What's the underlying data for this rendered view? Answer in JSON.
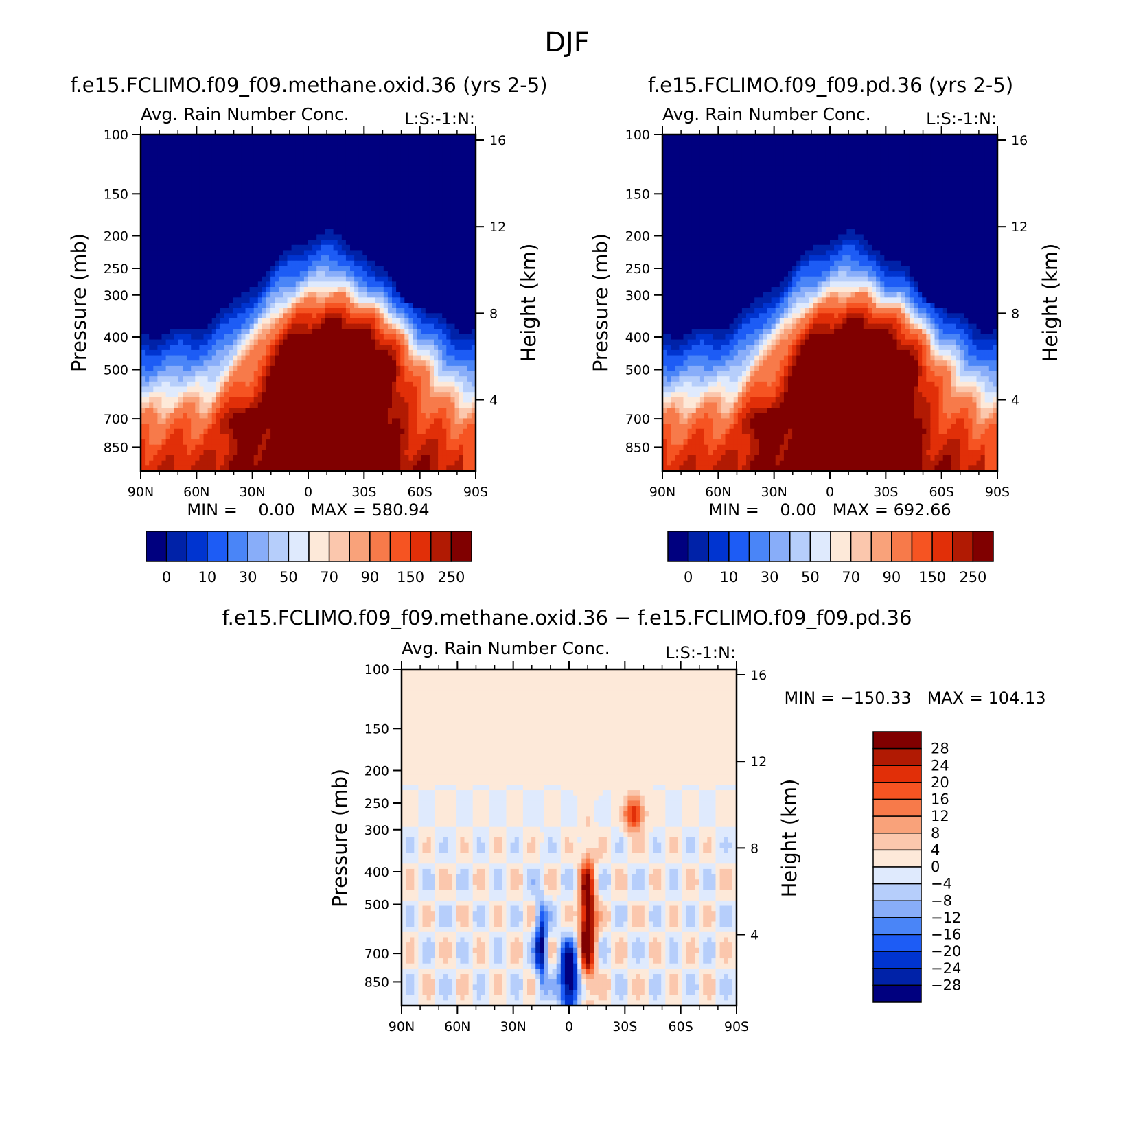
{
  "figure_title": "DJF",
  "chart_data": [
    {
      "type": "heatmap",
      "title": "f.e15.FCLIMO.f09_f09.methane.oxid.36 (yrs 2-5)",
      "subtitle": "Avg. Rain Number Conc.",
      "right_label": "L:S:-1:N:",
      "ylabel": "Pressure (mb)",
      "ylabel_right": "Height (km)",
      "x_ticks": [
        "90N",
        "60N",
        "30N",
        "0",
        "30S",
        "60S",
        "90S"
      ],
      "y_ticks": [
        "100",
        "150",
        "200",
        "250",
        "300",
        "400",
        "500",
        "700",
        "850"
      ],
      "y_ticks_right": [
        "16",
        "12",
        "8",
        "4"
      ],
      "min_max_label": "MIN =    0.00   MAX = 580.94",
      "min": 0.0,
      "max": 580.94,
      "colorbar_labels": [
        "0",
        "10",
        "30",
        "50",
        "70",
        "90",
        "150",
        "250"
      ],
      "colors": [
        "#00007f",
        "#0022a8",
        "#0034d0",
        "#1d5cf5",
        "#4a85f7",
        "#88adf9",
        "#b6cefb",
        "#dfeafd",
        "#fde9d9",
        "#fbc7ad",
        "#f9a27a",
        "#f77a4a",
        "#f65422",
        "#e12f08",
        "#b11a03",
        "#800000"
      ],
      "peak": 250
    },
    {
      "type": "heatmap",
      "title": "f.e15.FCLIMO.f09_f09.pd.36 (yrs 2-5)",
      "subtitle": "Avg. Rain Number Conc.",
      "right_label": "L:S:-1:N:",
      "ylabel": "Pressure (mb)",
      "ylabel_right": "Height (km)",
      "x_ticks": [
        "90N",
        "60N",
        "30N",
        "0",
        "30S",
        "60S",
        "90S"
      ],
      "y_ticks": [
        "100",
        "150",
        "200",
        "250",
        "300",
        "400",
        "500",
        "700",
        "850"
      ],
      "y_ticks_right": [
        "16",
        "12",
        "8",
        "4"
      ],
      "min_max_label": "MIN =    0.00   MAX = 692.66",
      "min": 0.0,
      "max": 692.66,
      "colorbar_labels": [
        "0",
        "10",
        "30",
        "50",
        "70",
        "90",
        "150",
        "250"
      ],
      "colors": [
        "#00007f",
        "#0022a8",
        "#0034d0",
        "#1d5cf5",
        "#4a85f7",
        "#88adf9",
        "#b6cefb",
        "#dfeafd",
        "#fde9d9",
        "#fbc7ad",
        "#f9a27a",
        "#f77a4a",
        "#f65422",
        "#e12f08",
        "#b11a03",
        "#800000"
      ],
      "peak": 250
    },
    {
      "type": "heatmap",
      "title": "f.e15.FCLIMO.f09_f09.methane.oxid.36 − f.e15.FCLIMO.f09_f09.pd.36",
      "subtitle": "Avg. Rain Number Conc.",
      "right_label": "L:S:-1:N:",
      "ylabel": "Pressure (mb)",
      "ylabel_right": "Height (km)",
      "x_ticks": [
        "90N",
        "60N",
        "30N",
        "0",
        "30S",
        "60S",
        "90S"
      ],
      "y_ticks": [
        "100",
        "150",
        "200",
        "250",
        "300",
        "400",
        "500",
        "700",
        "850"
      ],
      "y_ticks_right": [
        "16",
        "12",
        "8",
        "4"
      ],
      "min_max_label": "MIN = −150.33   MAX = 104.13",
      "min": -150.33,
      "max": 104.13,
      "colorbar_labels": [
        "28",
        "24",
        "20",
        "16",
        "12",
        "8",
        "4",
        "0",
        "−4",
        "−8",
        "−12",
        "−16",
        "−20",
        "−24",
        "−28"
      ],
      "colors": [
        "#800000",
        "#b11a03",
        "#e12f08",
        "#f65422",
        "#f77a4a",
        "#f9a27a",
        "#fbc7ad",
        "#fde9d9",
        "#dfeafd",
        "#b6cefb",
        "#88adf9",
        "#4a85f7",
        "#1d5cf5",
        "#0034d0",
        "#0022a8",
        "#00007f"
      ],
      "background": "#fde9d9"
    }
  ]
}
